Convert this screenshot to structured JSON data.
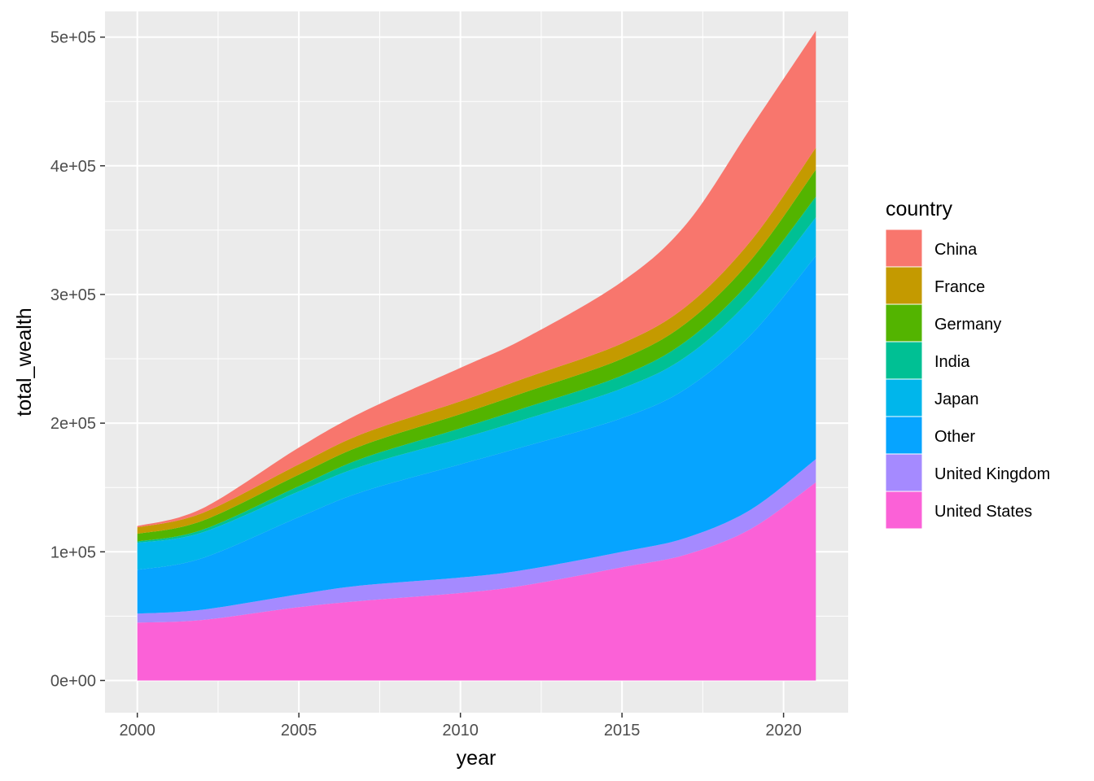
{
  "chart_data": {
    "type": "area",
    "stacked": true,
    "xlabel": "year",
    "ylabel": "total_wealth",
    "xlim": [
      1999.0,
      2022.0
    ],
    "ylim": [
      -25000,
      520000
    ],
    "x_ticks": [
      2000,
      2005,
      2010,
      2015,
      2020
    ],
    "x_tick_labels": [
      "2000",
      "2005",
      "2010",
      "2015",
      "2020"
    ],
    "y_ticks": [
      0,
      100000,
      200000,
      300000,
      400000,
      500000
    ],
    "y_tick_labels": [
      "0e+00",
      "1e+05",
      "2e+05",
      "3e+05",
      "4e+05",
      "5e+05"
    ],
    "grid": true,
    "legend": {
      "title": "country",
      "position": "right"
    },
    "x": [
      2000,
      2002,
      2005,
      2007,
      2010,
      2012,
      2015,
      2017,
      2019,
      2021
    ],
    "series": [
      {
        "name": "China",
        "color": "#F8766D",
        "values": [
          1000,
          3500,
          13000,
          17000,
          26000,
          31000,
          48000,
          64000,
          88000,
          91000
        ]
      },
      {
        "name": "France",
        "color": "#C49A00",
        "values": [
          5000,
          6000,
          8000,
          9000,
          10000,
          11000,
          12000,
          13000,
          15000,
          17000
        ]
      },
      {
        "name": "Germany",
        "color": "#53B400",
        "values": [
          6000,
          7000,
          9000,
          10000,
          11000,
          12000,
          13000,
          14000,
          16000,
          21000
        ]
      },
      {
        "name": "India",
        "color": "#00C094",
        "values": [
          1000,
          2000,
          4000,
          6000,
          8000,
          9000,
          10000,
          12000,
          14000,
          16000
        ]
      },
      {
        "name": "Japan",
        "color": "#00B6EB",
        "values": [
          21000,
          20000,
          20000,
          20000,
          20000,
          21000,
          23000,
          25000,
          28000,
          30000
        ]
      },
      {
        "name": "Other",
        "color": "#06A4FF",
        "values": [
          34000,
          40000,
          60000,
          73000,
          88000,
          96000,
          104000,
          116000,
          136000,
          158000
        ]
      },
      {
        "name": "United Kingdom",
        "color": "#A58AFF",
        "values": [
          7000,
          8000,
          10000,
          12000,
          12000,
          12000,
          12000,
          13000,
          15000,
          18000
        ]
      },
      {
        "name": "United States",
        "color": "#FB61D7",
        "values": [
          45000,
          47000,
          57000,
          62000,
          68000,
          74000,
          88000,
          98000,
          118000,
          154000
        ]
      }
    ],
    "panel_background": "#EBEBEB",
    "grid_color": "#FFFFFF"
  }
}
